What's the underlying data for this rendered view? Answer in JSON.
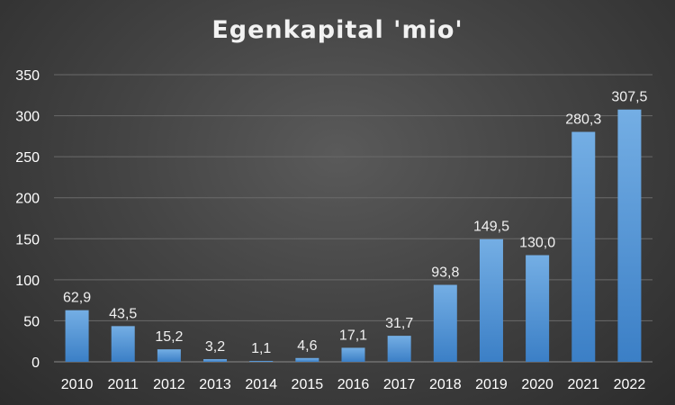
{
  "chart_data": {
    "type": "bar",
    "title": "Egenkapital 'mio'",
    "categories": [
      "2010",
      "2011",
      "2012",
      "2013",
      "2014",
      "2015",
      "2016",
      "2017",
      "2018",
      "2019",
      "2020",
      "2021",
      "2022"
    ],
    "values": [
      62.9,
      43.5,
      15.2,
      3.2,
      1.1,
      4.6,
      17.1,
      31.7,
      93.8,
      149.5,
      130.0,
      280.3,
      307.5
    ],
    "data_labels": [
      "62,9",
      "43,5",
      "15,2",
      "3,2",
      "1,1",
      "4,6",
      "17,1",
      "31,7",
      "93,8",
      "149,5",
      "130,0",
      "280,3",
      "307,5"
    ],
    "xlabel": "",
    "ylabel": "",
    "ylim": [
      0,
      350
    ],
    "yticks": [
      0,
      50,
      100,
      150,
      200,
      250,
      300,
      350
    ],
    "grid": true,
    "legend": "none",
    "colors": {
      "bar_top": "#74aee4",
      "bar_bottom": "#3b7fc6",
      "background": "#444444",
      "text": "#ffffff"
    }
  }
}
